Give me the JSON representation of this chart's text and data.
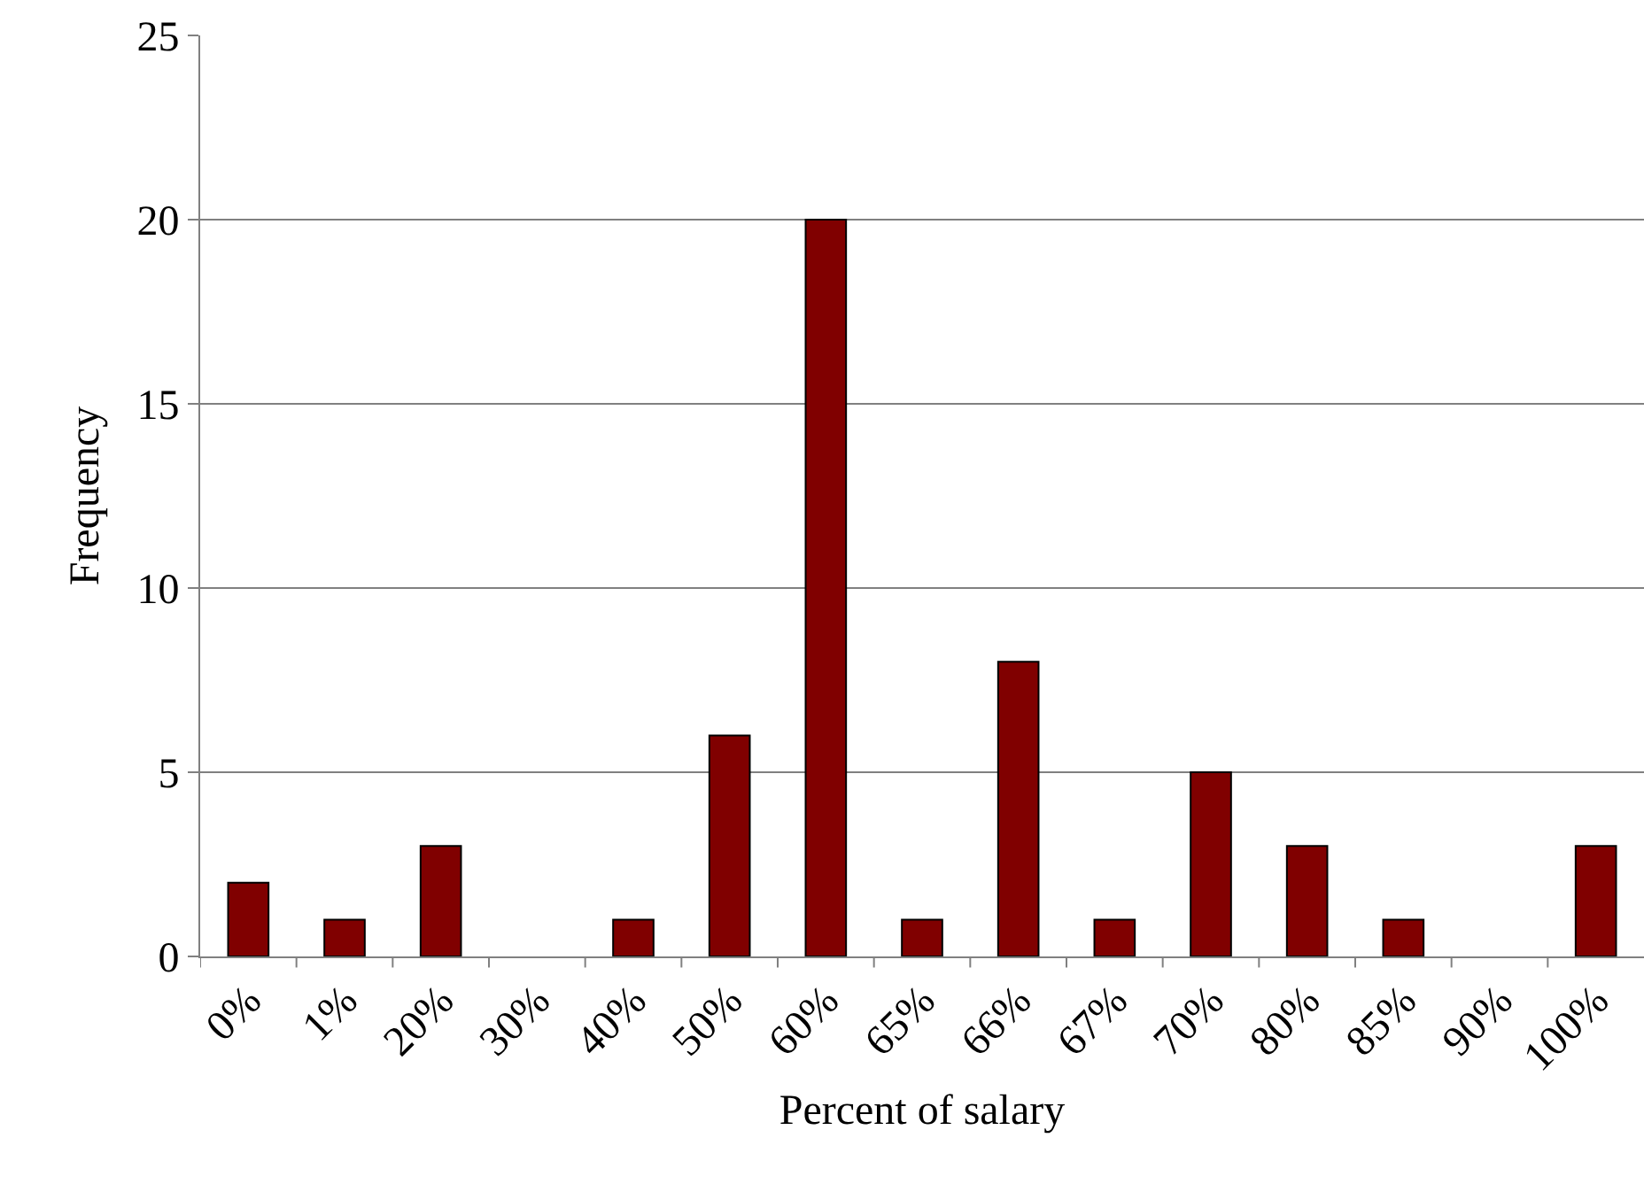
{
  "chart_data": {
    "type": "bar",
    "xlabel": "Percent of salary",
    "ylabel": "Frequency",
    "categories": [
      "0%",
      "1%",
      "20%",
      "30%",
      "40%",
      "50%",
      "60%",
      "65%",
      "66%",
      "67%",
      "70%",
      "80%",
      "85%",
      "90%",
      "100%"
    ],
    "values": [
      2,
      1,
      3,
      0,
      1,
      6,
      20,
      1,
      8,
      1,
      5,
      3,
      1,
      0,
      3
    ],
    "color": "#800000",
    "ylim": [
      0,
      25
    ],
    "yticks": [
      0,
      5,
      10,
      15,
      20,
      25
    ],
    "grid": "y"
  }
}
